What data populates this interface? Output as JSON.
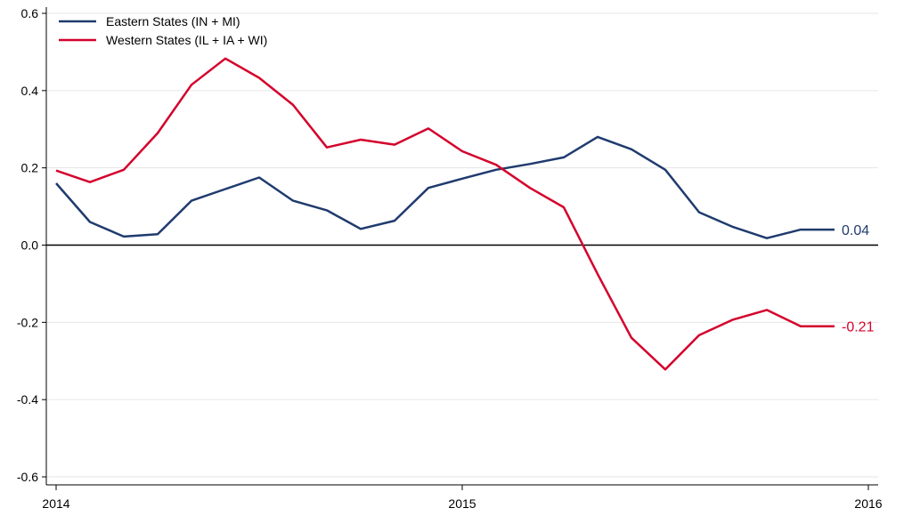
{
  "chart_data": {
    "type": "line",
    "title": "",
    "xlabel": "",
    "ylabel": "",
    "xlim": [
      2014,
      2016
    ],
    "ylim": [
      -0.6,
      0.6
    ],
    "x_ticks": [
      2014,
      2015,
      2016
    ],
    "x_tick_labels": [
      "2014",
      "2015",
      "2016"
    ],
    "y_ticks": [
      -0.6,
      -0.4,
      -0.2,
      0.0,
      0.2,
      0.4,
      0.6
    ],
    "y_tick_labels": [
      "-0.6",
      "-0.4",
      "-0.2",
      "0.0",
      "0.2",
      "0.4",
      "0.6"
    ],
    "grid": true,
    "zero_line": true,
    "legend_position": "top-left",
    "series": [
      {
        "name": "Eastern States (IN + MI)",
        "color": "#1f3b6e",
        "end_label": "0.04",
        "x": [
          2014.0,
          2014.0833,
          2014.1667,
          2014.25,
          2014.3333,
          2014.4167,
          2014.5,
          2014.5833,
          2014.6667,
          2014.75,
          2014.8333,
          2014.9167,
          2015.0,
          2015.0833,
          2015.1667,
          2015.25,
          2015.3333,
          2015.4167,
          2015.5,
          2015.5833,
          2015.6667,
          2015.75,
          2015.8333,
          2015.9167
        ],
        "y": [
          0.16,
          0.06,
          0.022,
          0.028,
          0.115,
          0.145,
          0.175,
          0.115,
          0.09,
          0.042,
          0.063,
          0.148,
          0.172,
          0.195,
          0.21,
          0.227,
          0.28,
          0.248,
          0.195,
          0.085,
          0.047,
          0.018,
          0.04,
          0.04
        ]
      },
      {
        "name": "Western States (IL + IA + WI)",
        "color": "#d4022c",
        "end_label": "-0.21",
        "x": [
          2014.0,
          2014.0833,
          2014.1667,
          2014.25,
          2014.3333,
          2014.4167,
          2014.5,
          2014.5833,
          2014.6667,
          2014.75,
          2014.8333,
          2014.9167,
          2015.0,
          2015.0833,
          2015.1667,
          2015.25,
          2015.3333,
          2015.4167,
          2015.5,
          2015.5833,
          2015.6667,
          2015.75,
          2015.8333,
          2015.9167
        ],
        "y": [
          0.193,
          0.163,
          0.195,
          0.29,
          0.415,
          0.483,
          0.433,
          0.363,
          0.253,
          0.273,
          0.26,
          0.302,
          0.243,
          0.208,
          0.148,
          0.098,
          -0.075,
          -0.24,
          -0.322,
          -0.233,
          -0.193,
          -0.168,
          -0.21,
          -0.21
        ]
      }
    ]
  }
}
